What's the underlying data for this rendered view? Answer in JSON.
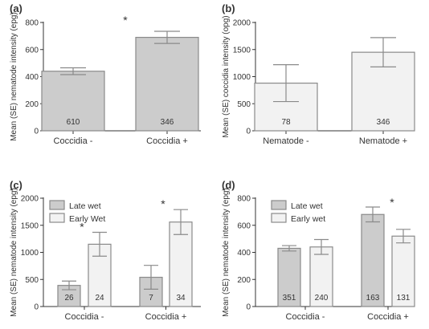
{
  "colors": {
    "dark_bar": "#cccccc",
    "light_bar": "#f2f2f2",
    "stroke": "#8a8a8a",
    "axis": "#333333"
  },
  "chart_data": [
    {
      "type": "bar",
      "panel_label": "(a)",
      "ylabel": "Mean (SE) nematode intensity (epg)",
      "categories": [
        "Coccidia -",
        "Coccidia +"
      ],
      "ylim": [
        0,
        800
      ],
      "yticks": [
        0,
        200,
        400,
        600,
        800
      ],
      "series": [
        {
          "values": [
            440,
            690
          ],
          "err": [
            25,
            45
          ],
          "n": [
            "610",
            "346"
          ],
          "style": "dark"
        }
      ],
      "annotations": [
        {
          "text": "*",
          "category": 1
        }
      ]
    },
    {
      "type": "bar",
      "panel_label": "(b)",
      "ylabel": "Mean (SE) coccidia intensity (opg)",
      "categories": [
        "Nematode -",
        "Nematode +"
      ],
      "ylim": [
        0,
        2000
      ],
      "yticks": [
        0,
        500,
        1000,
        1500,
        2000
      ],
      "series": [
        {
          "values": [
            880,
            1450
          ],
          "err": [
            340,
            270
          ],
          "n": [
            "78",
            "346"
          ],
          "style": "light"
        }
      ],
      "annotations": []
    },
    {
      "type": "bar",
      "panel_label": "(c)",
      "ylabel": "Mean (SE) nematode intensity (epg)",
      "categories": [
        "Coccidia -",
        "Coccidia +"
      ],
      "ylim": [
        0,
        2000
      ],
      "yticks": [
        0,
        500,
        1000,
        1500,
        2000
      ],
      "series": [
        {
          "name": "Late wet",
          "values": [
            390,
            540
          ],
          "err": [
            80,
            220
          ],
          "n": [
            "26",
            "7"
          ],
          "style": "dark"
        },
        {
          "name": "Early Wet",
          "values": [
            1150,
            1560
          ],
          "err": [
            220,
            230
          ],
          "n": [
            "24",
            "34"
          ],
          "style": "light"
        }
      ],
      "annotations": [
        {
          "text": "*",
          "category": 0
        },
        {
          "text": "*",
          "category": 1
        }
      ]
    },
    {
      "type": "bar",
      "panel_label": "(d)",
      "ylabel": "Mean (SE) nematode intensity (epg)",
      "categories": [
        "Coccidia -",
        "Coccidia +"
      ],
      "ylim": [
        0,
        800
      ],
      "yticks": [
        0,
        200,
        400,
        600,
        800
      ],
      "series": [
        {
          "name": "Late wet",
          "values": [
            430,
            680
          ],
          "err": [
            20,
            55
          ],
          "n": [
            "351",
            "163"
          ],
          "style": "dark"
        },
        {
          "name": "Early wet",
          "values": [
            440,
            520
          ],
          "err": [
            55,
            50
          ],
          "n": [
            "240",
            "131"
          ],
          "style": "light"
        }
      ],
      "annotations": [
        {
          "text": "*",
          "category": 1
        }
      ]
    }
  ]
}
